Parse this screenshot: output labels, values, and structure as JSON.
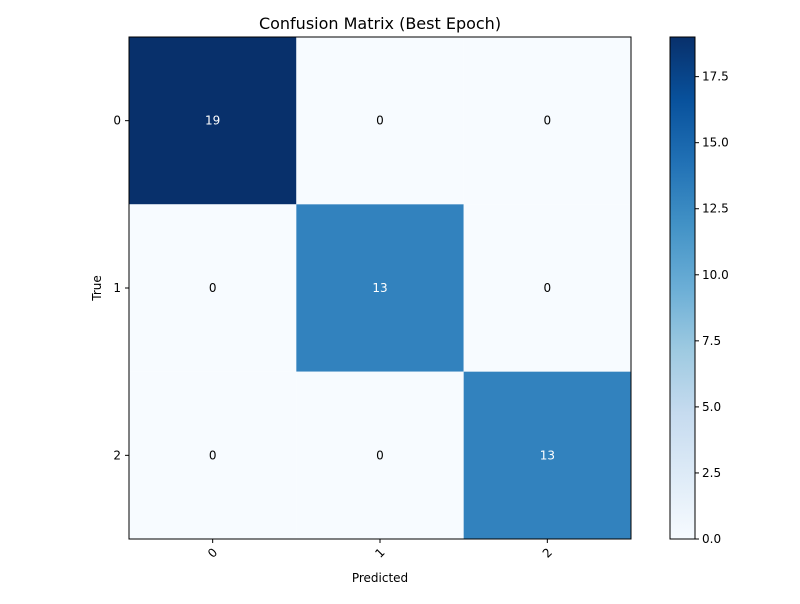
{
  "chart_data": {
    "type": "heatmap",
    "title": "Confusion Matrix (Best Epoch)",
    "xlabel": "Predicted",
    "ylabel": "True",
    "x_categories": [
      "0",
      "1",
      "2"
    ],
    "y_categories": [
      "0",
      "1",
      "2"
    ],
    "values": [
      [
        19,
        0,
        0
      ],
      [
        0,
        13,
        0
      ],
      [
        0,
        0,
        13
      ]
    ],
    "colormap": "Blues",
    "vmin": 0,
    "vmax": 19,
    "colorbar_ticks": [
      "0.0",
      "2.5",
      "5.0",
      "7.5",
      "10.0",
      "12.5",
      "15.0",
      "17.5"
    ],
    "colors": {
      "low": "#f7fbff",
      "high": "#08306b",
      "text_light": "#ffffff",
      "text_dark": "#000000"
    }
  }
}
